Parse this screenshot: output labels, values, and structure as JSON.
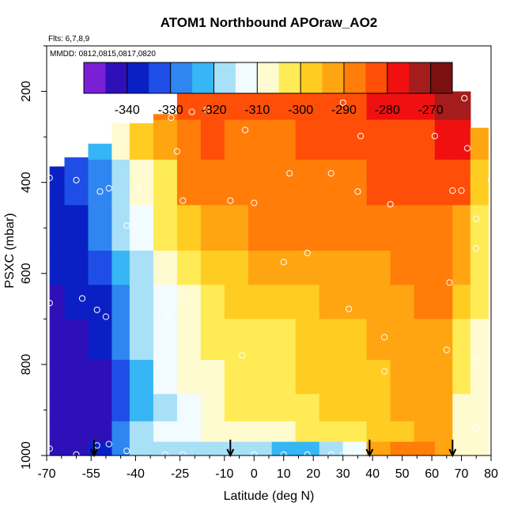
{
  "chart_data": {
    "type": "heatmap",
    "title": "ATOM1 Northbound APOraw_AO2",
    "annotations": [
      "Flts: 6,7,8,9",
      "MMDD: 0812,0815,0817,0820"
    ],
    "xlabel": "Latitude (deg N)",
    "ylabel": "PSXC (mbar)",
    "xlim": [
      -70,
      80
    ],
    "ylim": [
      1000,
      100
    ],
    "x_ticks": [
      -70,
      -55,
      -40,
      -25,
      -10,
      0,
      10,
      20,
      30,
      40,
      50,
      60,
      70,
      80
    ],
    "x_minor_ticks": [
      -65,
      -60,
      -50,
      -45,
      -35,
      -30,
      -20,
      -15,
      -5,
      5,
      15,
      25,
      35,
      45,
      55,
      65,
      75
    ],
    "y_ticks": [
      200,
      400,
      600,
      800,
      1000
    ],
    "y_minor_ticks": [
      100,
      300,
      500,
      700,
      900
    ],
    "colorbar": {
      "breaks": [
        -350,
        -345,
        -340,
        -335,
        -330,
        -325,
        -320,
        -315,
        -310,
        -305,
        -300,
        -295,
        -290,
        -285,
        -280,
        -275,
        -270,
        -265
      ],
      "tick_labels": [
        -340,
        -330,
        -320,
        -310,
        -300,
        -290,
        -280,
        -270
      ],
      "colors": [
        "#7a1fd6",
        "#2e10b8",
        "#0a20c4",
        "#1f4ee6",
        "#2f86f0",
        "#36b6f4",
        "#a8e0f8",
        "#f2fbff",
        "#fffbd0",
        "#ffeb55",
        "#ffcc22",
        "#ffa512",
        "#ff7d08",
        "#ff4e08",
        "#f01010",
        "#a51c1c",
        "#7a1010"
      ]
    },
    "field": {
      "bands": [
        {
          "lat": -67,
          "ptop": 365,
          "values": [
            -338,
            -338,
            -337,
            -338,
            -340,
            -341,
            -342,
            -342,
            -343,
            -343,
            -343
          ]
        },
        {
          "lat": -60,
          "ptop": 345,
          "values": [
            -332,
            -333,
            -334,
            -336,
            -338,
            -340,
            -342,
            -343,
            -343,
            -343,
            -342
          ]
        },
        {
          "lat": -52,
          "ptop": 315,
          "values": [
            -324,
            -322,
            -326,
            -330,
            -334,
            -336,
            -338,
            -341,
            -342,
            -342,
            -340
          ]
        },
        {
          "lat": -45,
          "ptop": 270,
          "values": [
            -300,
            -308,
            -316,
            -320,
            -324,
            -326,
            -328,
            -332,
            -334,
            -330,
            -326
          ]
        },
        {
          "lat": -38,
          "ptop": 270,
          "values": [
            -296,
            -300,
            -307,
            -313,
            -317,
            -318,
            -320,
            -322,
            -324,
            -320,
            -320
          ]
        },
        {
          "lat": -30,
          "ptop": 250,
          "values": [
            -287,
            -292,
            -301,
            -305,
            -310,
            -312,
            -314,
            -315,
            -316,
            -314,
            -318
          ]
        },
        {
          "lat": -22,
          "ptop": 200,
          "values": [
            -281,
            -286,
            -290,
            -296,
            -303,
            -306,
            -309,
            -310,
            -312,
            -311,
            -317
          ]
        },
        {
          "lat": -14,
          "ptop": 200,
          "values": [
            -284,
            -285,
            -289,
            -294,
            -300,
            -302,
            -305,
            -306,
            -309,
            -308,
            -317
          ]
        },
        {
          "lat": -6,
          "ptop": 200,
          "values": [
            -284,
            -286,
            -288,
            -292,
            -297,
            -300,
            -302,
            -303,
            -304,
            -307,
            -319
          ]
        },
        {
          "lat": 2,
          "ptop": 200,
          "values": [
            -285,
            -286,
            -288,
            -290,
            -295,
            -298,
            -301,
            -301,
            -302,
            -306,
            -319
          ]
        },
        {
          "lat": 10,
          "ptop": 200,
          "values": [
            -284,
            -286,
            -287,
            -290,
            -294,
            -297,
            -302,
            -301,
            -302,
            -307,
            -322
          ]
        },
        {
          "lat": 18,
          "ptop": 200,
          "values": [
            -284,
            -285,
            -287,
            -290,
            -294,
            -296,
            -300,
            -300,
            -302,
            -305,
            -322
          ]
        },
        {
          "lat": 26,
          "ptop": 200,
          "values": [
            -283,
            -284,
            -286,
            -289,
            -293,
            -295,
            -298,
            -298,
            -300,
            -303,
            -320
          ]
        },
        {
          "lat": 34,
          "ptop": 200,
          "values": [
            -282,
            -284,
            -286,
            -288,
            -292,
            -294,
            -296,
            -297,
            -298,
            -301,
            -314
          ]
        },
        {
          "lat": 42,
          "ptop": 200,
          "values": [
            -280,
            -283,
            -285,
            -288,
            -291,
            -293,
            -295,
            -296,
            -296,
            -298,
            -292
          ]
        },
        {
          "lat": 50,
          "ptop": 200,
          "values": [
            -278,
            -282,
            -285,
            -288,
            -290,
            -292,
            -293,
            -294,
            -295,
            -296,
            -290
          ]
        },
        {
          "lat": 58,
          "ptop": 200,
          "values": [
            -276,
            -281,
            -284,
            -288,
            -290,
            -290,
            -292,
            -293,
            -293,
            -294,
            -290
          ]
        },
        {
          "lat": 64,
          "ptop": 200,
          "values": [
            -275,
            -280,
            -283,
            -286,
            -288,
            -290,
            -291,
            -292,
            -293,
            -294,
            -291
          ]
        },
        {
          "lat": 70,
          "ptop": 200,
          "values": [
            -275,
            -278,
            -285,
            -293,
            -292,
            -296,
            -301,
            -304,
            -306,
            -307,
            -307
          ]
        },
        {
          "lat": 76,
          "ptop": 280,
          "values": [
            -290,
            -294,
            -298,
            -302,
            -304,
            -305,
            -306,
            -306,
            -306,
            -306,
            -307
          ]
        }
      ],
      "pressure_levels": [
        225,
        300,
        400,
        500,
        600,
        650,
        750,
        830,
        900,
        950,
        990
      ],
      "lat_edges": [
        -69,
        -64,
        -56,
        -48,
        -42,
        -34,
        -26,
        -18,
        -10,
        -2,
        6,
        14,
        22,
        30,
        38,
        46,
        54,
        61,
        67,
        73,
        79
      ]
    },
    "observation_points": [
      {
        "x": -69,
        "y": 390
      },
      {
        "x": -60,
        "y": 395
      },
      {
        "x": -69,
        "y": 665
      },
      {
        "x": -58,
        "y": 655
      },
      {
        "x": -53,
        "y": 680
      },
      {
        "x": -50,
        "y": 695
      },
      {
        "x": -52,
        "y": 420
      },
      {
        "x": -49,
        "y": 413
      },
      {
        "x": -43,
        "y": 495
      },
      {
        "x": -39,
        "y": 413
      },
      {
        "x": -28,
        "y": 258
      },
      {
        "x": -26,
        "y": 332
      },
      {
        "x": -24,
        "y": 440
      },
      {
        "x": -21,
        "y": 245
      },
      {
        "x": -16,
        "y": 240
      },
      {
        "x": -29,
        "y": 695
      },
      {
        "x": -24,
        "y": 650
      },
      {
        "x": -8,
        "y": 440
      },
      {
        "x": -3,
        "y": 285
      },
      {
        "x": 0,
        "y": 445
      },
      {
        "x": 10,
        "y": 575
      },
      {
        "x": 18,
        "y": 555
      },
      {
        "x": 12,
        "y": 380
      },
      {
        "x": 26,
        "y": 380
      },
      {
        "x": 30,
        "y": 225
      },
      {
        "x": 35,
        "y": 420
      },
      {
        "x": 36,
        "y": 298
      },
      {
        "x": 46,
        "y": 448
      },
      {
        "x": 61,
        "y": 298
      },
      {
        "x": 67,
        "y": 418
      },
      {
        "x": 70,
        "y": 418
      },
      {
        "x": 72,
        "y": 325
      },
      {
        "x": 75,
        "y": 480
      },
      {
        "x": 75,
        "y": 545
      },
      {
        "x": 71,
        "y": 215
      },
      {
        "x": 80,
        "y": 395
      },
      {
        "x": 66,
        "y": 620
      },
      {
        "x": 65,
        "y": 768
      },
      {
        "x": 75,
        "y": 785
      },
      {
        "x": 75,
        "y": 940
      },
      {
        "x": 44,
        "y": 740
      },
      {
        "x": 44,
        "y": 815
      },
      {
        "x": 32,
        "y": 678
      },
      {
        "x": -4,
        "y": 780
      },
      {
        "x": -69,
        "y": 985
      },
      {
        "x": -60,
        "y": 998
      },
      {
        "x": -53,
        "y": 978
      },
      {
        "x": -49,
        "y": 975
      },
      {
        "x": -43,
        "y": 990
      },
      {
        "x": -30,
        "y": 998
      },
      {
        "x": -24,
        "y": 998
      },
      {
        "x": 0,
        "y": 998
      },
      {
        "x": 10,
        "y": 998
      },
      {
        "x": 18,
        "y": 998
      },
      {
        "x": 26,
        "y": 998
      },
      {
        "x": 30,
        "y": 998
      },
      {
        "x": 81,
        "y": 978
      }
    ],
    "arrows": [
      -54,
      -8,
      39,
      67
    ]
  }
}
